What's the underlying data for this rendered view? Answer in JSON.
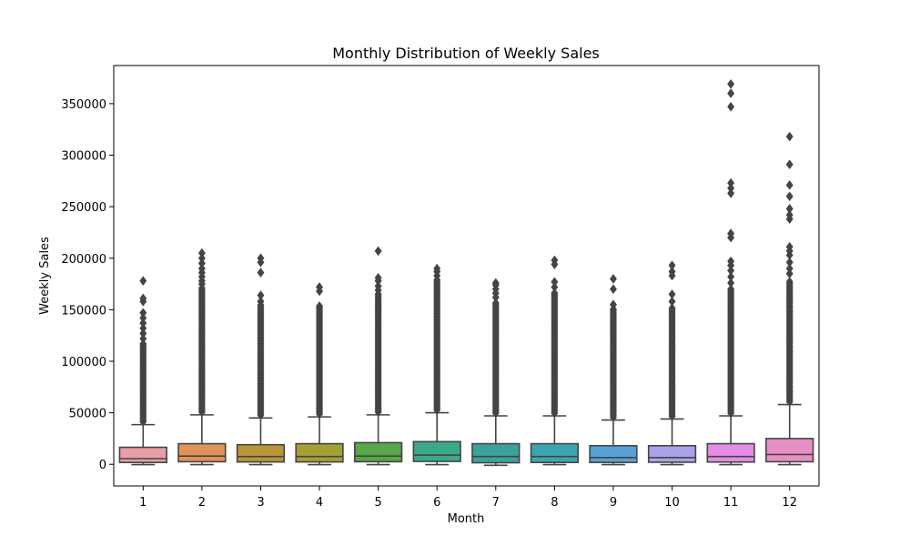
{
  "chart_data": {
    "type": "box",
    "title": "Monthly Distribution of Weekly Sales",
    "xlabel": "Month",
    "ylabel": "Weekly Sales",
    "ylim": [
      -21000,
      387000
    ],
    "yticks": [
      0,
      50000,
      100000,
      150000,
      200000,
      250000,
      300000,
      350000
    ],
    "grid": false,
    "categories": [
      "1",
      "2",
      "3",
      "4",
      "5",
      "6",
      "7",
      "8",
      "9",
      "10",
      "11",
      "12"
    ],
    "colors": [
      "#e8a0a6",
      "#e0925a",
      "#b99637",
      "#a5a034",
      "#58a74a",
      "#3aa98a",
      "#3aa39c",
      "#3ba6b0",
      "#58a0d6",
      "#a9a4ea",
      "#e38de6",
      "#e68fc7"
    ],
    "outlier_color": "#444444",
    "boxes": [
      {
        "q1": 1800,
        "median": 5500,
        "q3": 16500,
        "whisker_low": -300,
        "whisker_high": 38500,
        "outliers": {
          "dense_from": 38500,
          "dense_to": 118000,
          "sparse": [
            122000,
            127000,
            132000,
            137000,
            142000,
            147000,
            158000,
            161000,
            178000
          ]
        }
      },
      {
        "q1": 2500,
        "median": 8000,
        "q3": 20000,
        "whisker_low": -300,
        "whisker_high": 48000,
        "outliers": {
          "dense_from": 48000,
          "dense_to": 172000,
          "sparse": [
            175000,
            178000,
            182000,
            186000,
            190000,
            195000,
            200000,
            205000
          ]
        }
      },
      {
        "q1": 2300,
        "median": 7500,
        "q3": 19000,
        "whisker_low": -300,
        "whisker_high": 45000,
        "outliers": {
          "dense_from": 45000,
          "dense_to": 155000,
          "sparse": [
            158000,
            164000,
            186000,
            196000,
            200000
          ]
        }
      },
      {
        "q1": 2300,
        "median": 7500,
        "q3": 20000,
        "whisker_low": -300,
        "whisker_high": 46000,
        "outliers": {
          "dense_from": 46000,
          "dense_to": 155000,
          "sparse": [
            168000,
            172000
          ]
        }
      },
      {
        "q1": 2500,
        "median": 8000,
        "q3": 21000,
        "whisker_low": -300,
        "whisker_high": 48000,
        "outliers": {
          "dense_from": 48000,
          "dense_to": 166000,
          "sparse": [
            169000,
            173000,
            178000,
            181000,
            207000
          ]
        }
      },
      {
        "q1": 2800,
        "median": 9000,
        "q3": 22000,
        "whisker_low": -300,
        "whisker_high": 50000,
        "outliers": {
          "dense_from": 50000,
          "dense_to": 180000,
          "sparse": [
            183000,
            187000,
            190000
          ]
        }
      },
      {
        "q1": 1500,
        "median": 7500,
        "q3": 20000,
        "whisker_low": -1000,
        "whisker_high": 47000,
        "outliers": {
          "dense_from": 47000,
          "dense_to": 158000,
          "sparse": [
            162000,
            166000,
            170000,
            174000,
            176000
          ]
        }
      },
      {
        "q1": 1800,
        "median": 7500,
        "q3": 20000,
        "whisker_low": -300,
        "whisker_high": 47000,
        "outliers": {
          "dense_from": 47000,
          "dense_to": 168000,
          "sparse": [
            172000,
            177000,
            194000,
            198000
          ]
        }
      },
      {
        "q1": 1800,
        "median": 6500,
        "q3": 18000,
        "whisker_low": -300,
        "whisker_high": 43000,
        "outliers": {
          "dense_from": 43000,
          "dense_to": 152000,
          "sparse": [
            155000,
            170000,
            180000
          ]
        }
      },
      {
        "q1": 2000,
        "median": 6500,
        "q3": 18000,
        "whisker_low": -300,
        "whisker_high": 44000,
        "outliers": {
          "dense_from": 44000,
          "dense_to": 152000,
          "sparse": [
            158000,
            165000,
            183000,
            187000,
            193000
          ]
        }
      },
      {
        "q1": 2200,
        "median": 7500,
        "q3": 20000,
        "whisker_low": -300,
        "whisker_high": 47000,
        "outliers": {
          "dense_from": 47000,
          "dense_to": 172000,
          "sparse": [
            176000,
            182000,
            188000,
            193000,
            197000,
            220000,
            224000,
            263000,
            268000,
            273000,
            347000,
            360000,
            369000
          ]
        }
      },
      {
        "q1": 2500,
        "median": 9500,
        "q3": 25000,
        "whisker_low": -300,
        "whisker_high": 58000,
        "outliers": {
          "dense_from": 58000,
          "dense_to": 178000,
          "sparse": [
            185000,
            190000,
            196000,
            203000,
            207000,
            211000,
            238000,
            242000,
            248000,
            260000,
            271000,
            291000,
            318000
          ]
        }
      }
    ]
  }
}
